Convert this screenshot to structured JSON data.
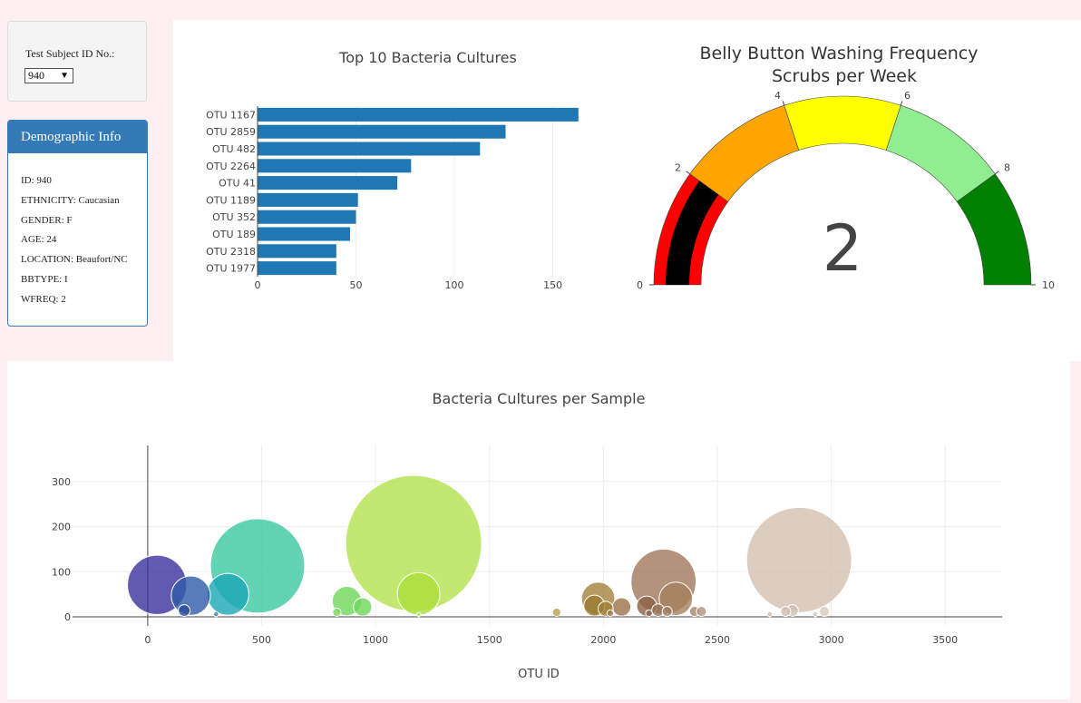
{
  "sidebar": {
    "select_label": "Test Subject ID No.:",
    "selected_id": "940",
    "demographic_title": "Demographic Info",
    "demographics": [
      "ID: 940",
      "ETHNICITY: Caucasian",
      "GENDER: F",
      "AGE: 24",
      "LOCATION: Beaufort/NC",
      "BBTYPE: I",
      "WFREQ: 2"
    ]
  },
  "chart_data": [
    {
      "type": "bar",
      "orientation": "horizontal",
      "title": "Top 10 Bacteria Cultures",
      "categories": [
        "OTU 1167",
        "OTU 2859",
        "OTU 482",
        "OTU 2264",
        "OTU 41",
        "OTU 1189",
        "OTU 352",
        "OTU 189",
        "OTU 2318",
        "OTU 1977"
      ],
      "values": [
        163,
        126,
        113,
        78,
        71,
        51,
        50,
        47,
        40,
        40
      ],
      "xlim": [
        0,
        170
      ],
      "xticks": [
        0,
        50,
        100,
        150
      ],
      "color": "#1f77b4"
    },
    {
      "type": "gauge",
      "title": "Belly Button Washing Frequency",
      "subtitle": "Scrubs per Week",
      "value": 2,
      "range": [
        0,
        10
      ],
      "ticks": [
        0,
        2,
        4,
        6,
        8,
        10
      ],
      "steps": [
        {
          "range": [
            0,
            2
          ],
          "color": "#ff0000"
        },
        {
          "range": [
            2,
            4
          ],
          "color": "#ffa500"
        },
        {
          "range": [
            4,
            6
          ],
          "color": "#ffff00"
        },
        {
          "range": [
            6,
            8
          ],
          "color": "#90ee90"
        },
        {
          "range": [
            8,
            10
          ],
          "color": "#008000"
        }
      ],
      "bar_color": "#000000"
    },
    {
      "type": "scatter",
      "mode": "bubble",
      "title": "Bacteria Cultures per Sample",
      "xlabel": "OTU ID",
      "ylabel": "",
      "xlim": [
        -330,
        3750
      ],
      "ylim": [
        -20,
        380
      ],
      "xticks": [
        0,
        500,
        1000,
        1500,
        2000,
        2500,
        3000,
        3500
      ],
      "yticks": [
        0,
        100,
        200,
        300
      ],
      "grid": true,
      "points": [
        {
          "x": 41,
          "y": 71,
          "color": "#3b2f9c"
        },
        {
          "x": 189,
          "y": 47,
          "color": "#2f5aa8"
        },
        {
          "x": 352,
          "y": 50,
          "color": "#1aa6b7"
        },
        {
          "x": 482,
          "y": 113,
          "color": "#3cc9a0"
        },
        {
          "x": 160,
          "y": 14,
          "color": "#2a4b9a"
        },
        {
          "x": 300,
          "y": 6,
          "color": "#2a7fb0"
        },
        {
          "x": 874,
          "y": 35,
          "color": "#6fd65a"
        },
        {
          "x": 943,
          "y": 22,
          "color": "#6fd65a"
        },
        {
          "x": 830,
          "y": 10,
          "color": "#7ad860"
        },
        {
          "x": 1167,
          "y": 163,
          "color": "#b4e24f"
        },
        {
          "x": 1189,
          "y": 51,
          "color": "#aade3a"
        },
        {
          "x": 1190,
          "y": 5,
          "color": "#b8e060"
        },
        {
          "x": 1795,
          "y": 10,
          "color": "#b5a04a"
        },
        {
          "x": 1977,
          "y": 40,
          "color": "#a4823c"
        },
        {
          "x": 1960,
          "y": 25,
          "color": "#9b7a2e"
        },
        {
          "x": 2010,
          "y": 18,
          "color": "#a17e3a"
        },
        {
          "x": 2080,
          "y": 22,
          "color": "#9a7248"
        },
        {
          "x": 2030,
          "y": 8,
          "color": "#a07a44"
        },
        {
          "x": 2264,
          "y": 78,
          "color": "#a0785a"
        },
        {
          "x": 2318,
          "y": 40,
          "color": "#a6815f"
        },
        {
          "x": 2190,
          "y": 24,
          "color": "#8c6244"
        },
        {
          "x": 2240,
          "y": 15,
          "color": "#9a7356"
        },
        {
          "x": 2280,
          "y": 12,
          "color": "#a07c62"
        },
        {
          "x": 2200,
          "y": 8,
          "color": "#8e6650"
        },
        {
          "x": 2400,
          "y": 12,
          "color": "#a48468"
        },
        {
          "x": 2430,
          "y": 12,
          "color": "#b0927a"
        },
        {
          "x": 2859,
          "y": 126,
          "color": "#d4c0b0"
        },
        {
          "x": 2800,
          "y": 12,
          "color": "#d0bcae"
        },
        {
          "x": 2830,
          "y": 14,
          "color": "#d2c0b2"
        },
        {
          "x": 2730,
          "y": 6,
          "color": "#cbb6a6"
        },
        {
          "x": 2970,
          "y": 12,
          "color": "#d8c8bc"
        },
        {
          "x": 2930,
          "y": 6,
          "color": "#d6c6ba"
        }
      ]
    }
  ]
}
